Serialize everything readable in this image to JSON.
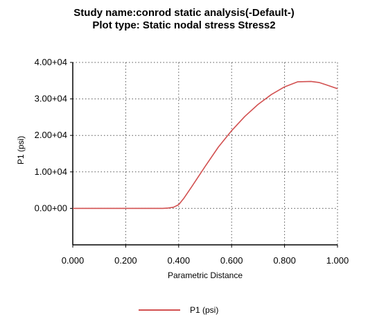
{
  "chart_data": {
    "type": "line",
    "title": "Study name:conrod static analysis(-Default-)",
    "subtitle": "Plot type: Static nodal stress Stress2",
    "xlabel": "Parametric Distance",
    "ylabel": "P1 (psi)",
    "xlim": [
      0,
      1
    ],
    "ylim": [
      -10000,
      40000
    ],
    "x_ticks": [
      "0.000",
      "0.200",
      "0.400",
      "0.600",
      "0.800",
      "1.000"
    ],
    "y_ticks": [
      "4.00+04",
      "3.00+04",
      "2.00+04",
      "1.00+04",
      "0.00+00"
    ],
    "y_tick_values": [
      40000,
      30000,
      20000,
      10000,
      0
    ],
    "grid": true,
    "legend_position": "bottom",
    "series": [
      {
        "name": "P1 (psi)",
        "color": "#d25050",
        "x": [
          0.0,
          0.05,
          0.1,
          0.15,
          0.2,
          0.25,
          0.3,
          0.34,
          0.36,
          0.38,
          0.4,
          0.42,
          0.45,
          0.5,
          0.55,
          0.6,
          0.65,
          0.7,
          0.75,
          0.8,
          0.85,
          0.9,
          0.93,
          0.96,
          1.0
        ],
        "values": [
          0,
          0,
          0,
          0,
          0,
          0,
          0,
          0,
          100,
          300,
          1000,
          2800,
          6000,
          11500,
          16800,
          21300,
          25200,
          28500,
          31200,
          33300,
          34700,
          34800,
          34500,
          33800,
          32800
        ]
      }
    ]
  }
}
